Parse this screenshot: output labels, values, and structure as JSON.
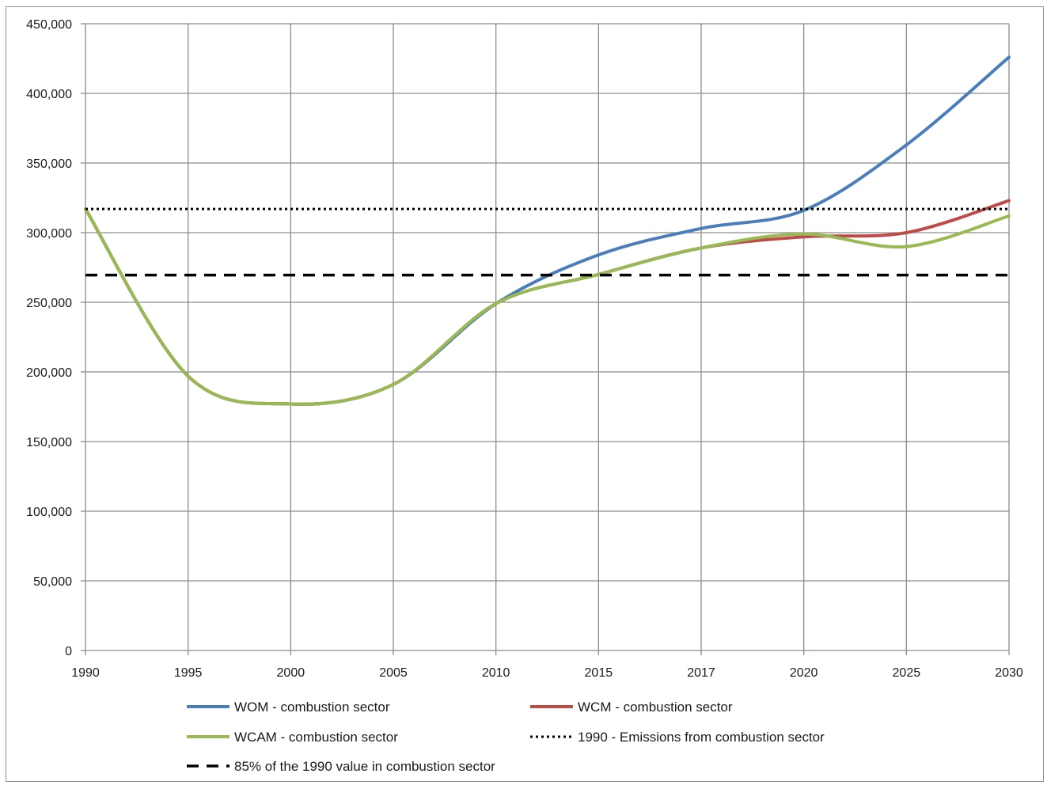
{
  "chart_data": {
    "type": "line",
    "title": "",
    "xlabel": "",
    "ylabel": "",
    "categories": [
      "1990",
      "1995",
      "2000",
      "2005",
      "2010",
      "2015",
      "2017",
      "2020",
      "2025",
      "2030"
    ],
    "ylim": [
      0,
      450000
    ],
    "yticks": [
      0,
      50000,
      100000,
      150000,
      200000,
      250000,
      300000,
      350000,
      400000,
      450000
    ],
    "ytick_labels": [
      "0",
      "50,000",
      "100,000",
      "150,000",
      "200,000",
      "250,000",
      "300,000",
      "350,000",
      "400,000",
      "450,000"
    ],
    "grid": true,
    "legend_position": "bottom",
    "series": [
      {
        "name": "WOM - combustion sector",
        "color": "#4a7ebb",
        "style": "solid",
        "values": [
          317000,
          197000,
          177000,
          191000,
          249000,
          284000,
          303000,
          316000,
          363000,
          426000
        ]
      },
      {
        "name": "WCM - combustion sector",
        "color": "#be4b48",
        "style": "solid",
        "values": [
          317000,
          197000,
          177000,
          191000,
          249000,
          270000,
          289000,
          297000,
          300000,
          323000
        ]
      },
      {
        "name": "WCAM - combustion sector",
        "color": "#98b954",
        "style": "solid",
        "values": [
          317000,
          197000,
          177000,
          191000,
          249000,
          270000,
          289000,
          299000,
          290000,
          312000
        ]
      },
      {
        "name": "1990 - Emissions from combustion sector",
        "color": "#000000",
        "style": "dotted",
        "values": [
          317000,
          317000,
          317000,
          317000,
          317000,
          317000,
          317000,
          317000,
          317000,
          317000
        ]
      },
      {
        "name": "85% of the 1990 value in combustion sector",
        "color": "#000000",
        "style": "dashed",
        "values": [
          269500,
          269500,
          269500,
          269500,
          269500,
          269500,
          269500,
          269500,
          269500,
          269500
        ]
      }
    ]
  }
}
